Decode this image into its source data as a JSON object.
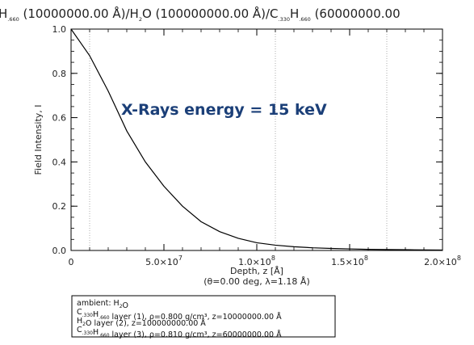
{
  "colors": {
    "annotation": "#1b3f78",
    "line": "#000000",
    "grid": "#9a9a9a"
  },
  "chart_data": {
    "type": "line",
    "title": "H.660 (10000000.00 Å)/H2O (100000000.00 Å)/C330H660 (60000000.00",
    "title_parts": {
      "lead": "H",
      "lead_sub": ".660",
      "seg1": " (10000000.00 Å)/H",
      "seg1_sub": "2",
      "seg2": "O (100000000.00 Å)/C",
      "seg2_sub": ".330",
      "seg3": "H",
      "seg3_sub": ".660",
      "seg4": " (60000000.00"
    },
    "ylabel": "Field Intensity, I",
    "xlabel": "Depth, z [Å]",
    "xlabel2": "(θ=0.00 deg, λ=1.18 Å)",
    "xlim": [
      0,
      200000000
    ],
    "ylim": [
      0,
      1.0
    ],
    "xticks": [
      {
        "value": 0,
        "label": "0"
      },
      {
        "value": 50000000,
        "label": "5.0×10",
        "exp": "7"
      },
      {
        "value": 100000000,
        "label": "1.0×10",
        "exp": "8"
      },
      {
        "value": 150000000,
        "label": "1.5×10",
        "exp": "8"
      },
      {
        "value": 200000000,
        "label": "2.0×10",
        "exp": "8"
      }
    ],
    "yticks": [
      {
        "value": 0.0,
        "label": "0.0"
      },
      {
        "value": 0.2,
        "label": "0.2"
      },
      {
        "value": 0.4,
        "label": "0.4"
      },
      {
        "value": 0.6,
        "label": "0.6"
      },
      {
        "value": 0.8,
        "label": "0.8"
      },
      {
        "value": 1.0,
        "label": "1.0"
      }
    ],
    "interfaces": [
      10000000,
      110000000,
      170000000
    ],
    "annotation": "X-Rays energy = 15 keV",
    "series": [
      {
        "x": [
          0,
          5000000,
          10000000,
          20000000,
          30000000,
          40000000,
          50000000,
          60000000,
          70000000,
          80000000,
          90000000,
          100000000,
          110000000,
          120000000,
          130000000,
          140000000,
          150000000,
          160000000,
          170000000,
          185000000,
          200000000
        ],
        "y": [
          1.0,
          0.94,
          0.88,
          0.72,
          0.54,
          0.4,
          0.29,
          0.2,
          0.13,
          0.085,
          0.055,
          0.035,
          0.024,
          0.017,
          0.012,
          0.009,
          0.007,
          0.005,
          0.004,
          0.003,
          0.002
        ]
      }
    ],
    "legend": {
      "placement": "bottom-left",
      "lines": [
        {
          "text": "ambient: H",
          "sub": "2",
          "rest": "O",
          "pre": "",
          "presub": ""
        },
        {
          "pre": "C",
          "presub": ".330",
          "text": "H",
          "sub": ".660",
          "rest": " layer (1), ρ=0.800 g/cm³, z=10000000.00 Å"
        },
        {
          "pre": "",
          "presub": "",
          "text": "H",
          "sub": "2",
          "rest": "O layer (2), z=100000000.00 Å"
        },
        {
          "pre": "C",
          "presub": ".330",
          "text": "H",
          "sub": ".660",
          "rest": " layer (3), ρ=0.810 g/cm³, z=60000000.00 Å"
        }
      ]
    }
  }
}
